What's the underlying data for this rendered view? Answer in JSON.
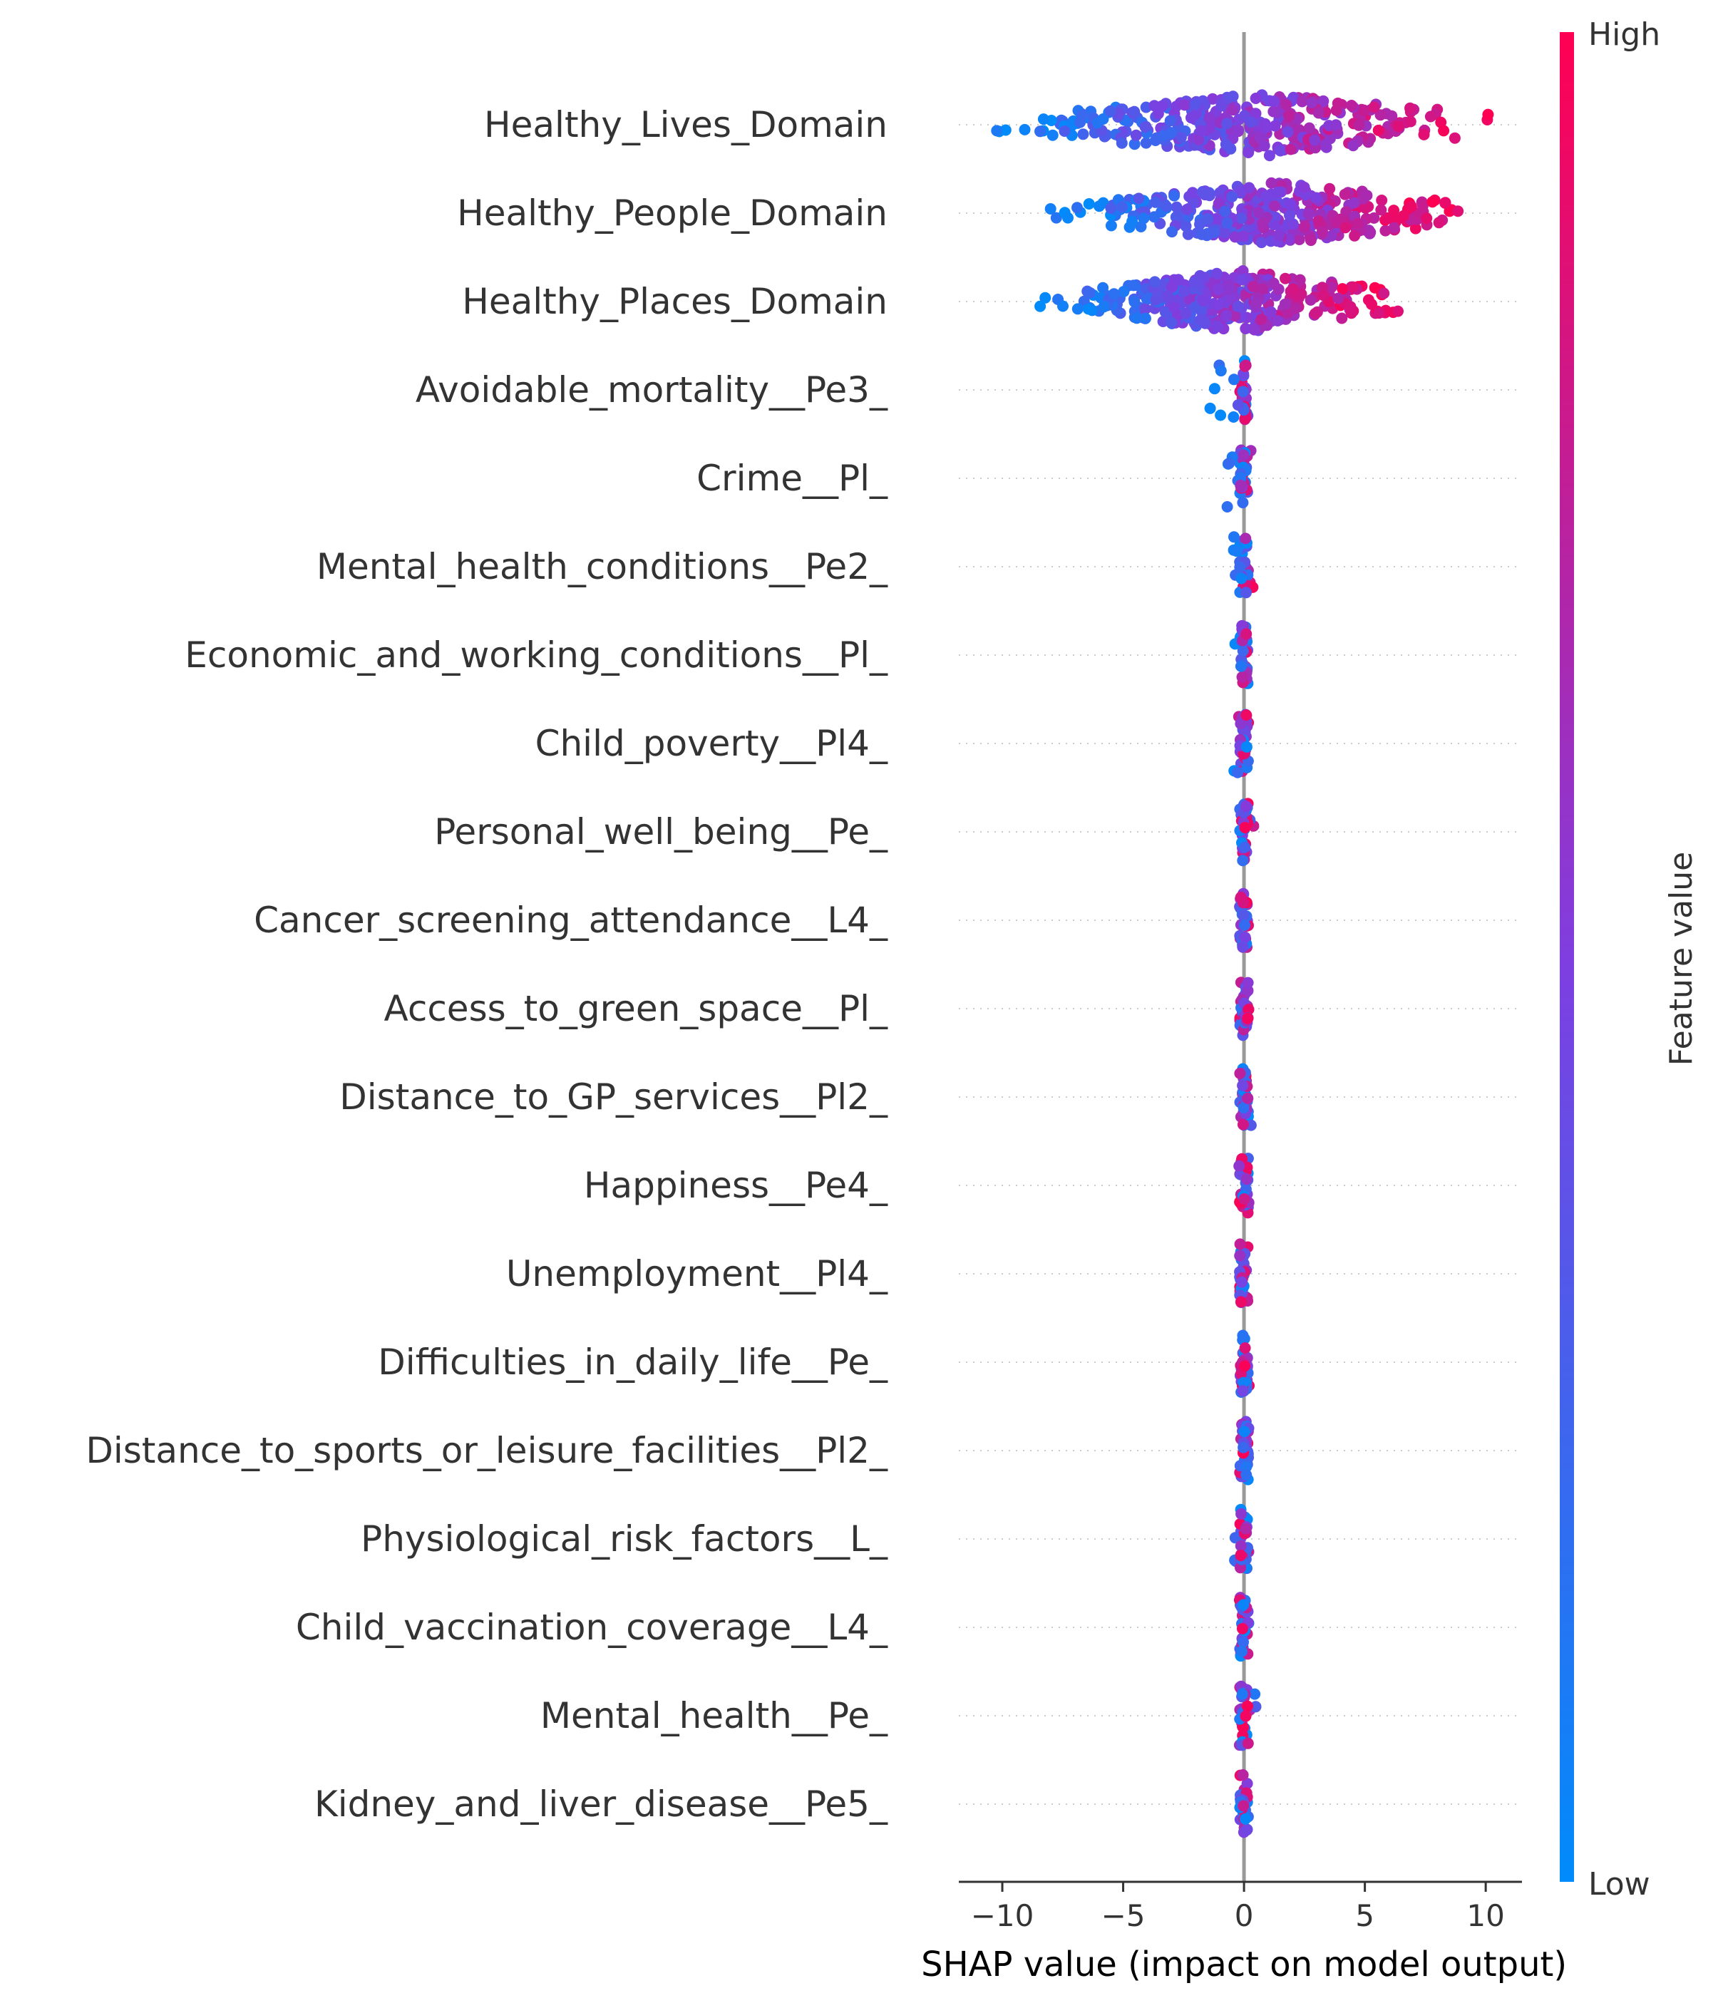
{
  "chart_data": {
    "type": "scatter",
    "subtype": "shap-beeswarm",
    "title": "",
    "xlabel": "SHAP value (impact on model output)",
    "ylabel": "",
    "xlim": [
      -11.8,
      11.5
    ],
    "xticks": [
      -10,
      -5,
      0,
      5,
      10
    ],
    "xtick_labels": [
      "−10",
      "−5",
      "0",
      "5",
      "10"
    ],
    "grid": false,
    "zero_line": true,
    "features": [
      {
        "name": "Healthy_Lives_Domain",
        "min": -10.9,
        "max": 10.4,
        "spread": "wide"
      },
      {
        "name": "Healthy_People_Domain",
        "min": -8.2,
        "max": 9.2,
        "spread": "wide"
      },
      {
        "name": "Healthy_Places_Domain",
        "min": -8.5,
        "max": 6.6,
        "spread": "wide"
      },
      {
        "name": "Avoidable_mortality__Pe3_",
        "min": -1.8,
        "max": 0.3,
        "spread": "narrow"
      },
      {
        "name": "Crime__Pl_",
        "min": -0.9,
        "max": 0.3,
        "spread": "narrow"
      },
      {
        "name": "Mental_health_conditions__Pe2_",
        "min": -0.5,
        "max": 0.4,
        "spread": "narrow"
      },
      {
        "name": "Economic_and_working_conditions__Pl_",
        "min": -0.4,
        "max": 0.3,
        "spread": "narrow"
      },
      {
        "name": "Child_poverty__Pl4_",
        "min": -0.5,
        "max": 0.2,
        "spread": "narrow"
      },
      {
        "name": "Personal_well_being__Pe_",
        "min": -0.3,
        "max": 0.4,
        "spread": "narrow"
      },
      {
        "name": "Cancer_screening_attendance__L4_",
        "min": -0.2,
        "max": 0.2,
        "spread": "narrow"
      },
      {
        "name": "Access_to_green_space__Pl_",
        "min": -0.5,
        "max": 0.2,
        "spread": "narrow"
      },
      {
        "name": "Distance_to_GP_services__Pl2_",
        "min": -0.3,
        "max": 0.3,
        "spread": "narrow"
      },
      {
        "name": "Happiness__Pe4_",
        "min": -0.4,
        "max": 0.2,
        "spread": "narrow"
      },
      {
        "name": "Unemployment__Pl4_",
        "min": -0.2,
        "max": 0.2,
        "spread": "narrow"
      },
      {
        "name": "Difficulties_in_daily_life__Pe_",
        "min": -0.4,
        "max": 0.3,
        "spread": "narrow"
      },
      {
        "name": "Distance_to_sports_or_leisure_facilities__Pl2_",
        "min": -0.2,
        "max": 0.2,
        "spread": "narrow"
      },
      {
        "name": "Physiological_risk_factors__L_",
        "min": -0.4,
        "max": 0.2,
        "spread": "narrow"
      },
      {
        "name": "Child_vaccination_coverage__L4_",
        "min": -0.2,
        "max": 0.2,
        "spread": "narrow"
      },
      {
        "name": "Mental_health__Pe_",
        "min": -0.2,
        "max": 0.5,
        "spread": "narrow"
      },
      {
        "name": "Kidney_and_liver_disease__Pe5_",
        "min": -0.2,
        "max": 0.2,
        "spread": "narrow"
      }
    ],
    "colorbar": {
      "label": "Feature value",
      "high_label": "High",
      "low_label": "Low",
      "low_color": "#008bfb",
      "mid_color": "#7f3ee0",
      "high_color": "#ff0052"
    }
  }
}
